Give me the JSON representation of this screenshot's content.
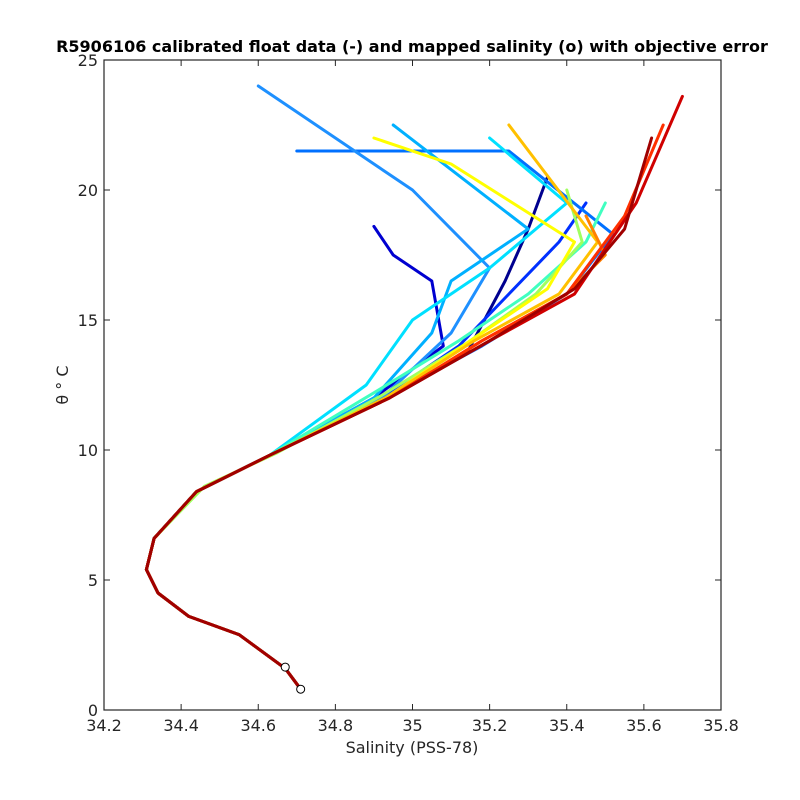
{
  "chart_data": {
    "type": "line",
    "title": "R5906106 calibrated float data (-) and mapped salinity (o) with objective error",
    "xlabel": "Salinity (PSS-78)",
    "ylabel": "θ ° C",
    "xlim": [
      34.2,
      35.8
    ],
    "ylim": [
      0,
      25
    ],
    "xticks": [
      "34.2",
      "34.4",
      "34.6",
      "34.8",
      "35",
      "35.2",
      "35.4",
      "35.6",
      "35.8"
    ],
    "yticks": [
      "0",
      "5",
      "10",
      "15",
      "20",
      "25"
    ],
    "grid": false,
    "colormap": "jet (early profiles blue → late profiles red)",
    "series": [
      {
        "color": "#00008f",
        "x": [
          34.71,
          34.67,
          34.55,
          34.42,
          34.34,
          34.31,
          34.33,
          34.44,
          34.63,
          34.92,
          35.14,
          35.24,
          35.3,
          35.35
        ],
        "y": [
          0.8,
          1.6,
          2.9,
          3.6,
          4.5,
          5.4,
          6.6,
          8.4,
          9.8,
          12.0,
          13.7,
          16.5,
          18.5,
          20.5
        ]
      },
      {
        "color": "#0000d0",
        "x": [
          34.71,
          34.67,
          34.55,
          34.42,
          34.34,
          34.31,
          34.33,
          34.44,
          34.63,
          34.9,
          35.08,
          35.05,
          34.95,
          34.9
        ],
        "y": [
          0.8,
          1.6,
          2.9,
          3.6,
          4.5,
          5.4,
          6.6,
          8.4,
          9.8,
          12.0,
          14.0,
          16.5,
          17.5,
          18.6
        ]
      },
      {
        "color": "#0030ff",
        "x": [
          34.71,
          34.67,
          34.55,
          34.42,
          34.34,
          34.31,
          34.33,
          34.44,
          34.63,
          34.92,
          35.12,
          35.25,
          35.38,
          35.45
        ],
        "y": [
          0.8,
          1.6,
          2.9,
          3.6,
          4.5,
          5.4,
          6.6,
          8.4,
          9.8,
          12.0,
          14.0,
          16.0,
          18.0,
          19.5
        ]
      },
      {
        "color": "#0070ff",
        "x": [
          34.71,
          34.67,
          34.55,
          34.42,
          34.34,
          34.31,
          34.33,
          34.44,
          34.63,
          34.93,
          35.18,
          35.4,
          35.52,
          35.25,
          34.7
        ],
        "y": [
          0.8,
          1.6,
          2.9,
          3.6,
          4.5,
          5.4,
          6.6,
          8.4,
          9.8,
          12.0,
          14.0,
          16.0,
          18.3,
          21.5,
          21.5
        ]
      },
      {
        "color": "#1e90ff",
        "x": [
          34.71,
          34.67,
          34.55,
          34.42,
          34.34,
          34.31,
          34.33,
          34.44,
          34.63,
          34.92,
          35.1,
          35.2,
          35.0,
          34.6
        ],
        "y": [
          0.8,
          1.6,
          2.9,
          3.6,
          4.5,
          5.4,
          6.6,
          8.4,
          9.8,
          12.0,
          14.5,
          17.0,
          20.0,
          24.0
        ]
      },
      {
        "color": "#00b0ff",
        "x": [
          34.71,
          34.67,
          34.55,
          34.42,
          34.34,
          34.31,
          34.33,
          34.44,
          34.63,
          34.9,
          35.05,
          35.1,
          35.3,
          34.95
        ],
        "y": [
          0.8,
          1.6,
          2.9,
          3.6,
          4.5,
          5.4,
          6.6,
          8.4,
          9.8,
          12.0,
          14.5,
          16.5,
          18.5,
          22.5
        ]
      },
      {
        "color": "#00e0ff",
        "x": [
          34.71,
          34.67,
          34.55,
          34.42,
          34.34,
          34.31,
          34.33,
          34.44,
          34.63,
          34.88,
          35.0,
          35.2,
          35.4,
          35.2
        ],
        "y": [
          0.8,
          1.6,
          2.9,
          3.6,
          4.5,
          5.4,
          6.6,
          8.4,
          9.8,
          12.5,
          15.0,
          17.0,
          19.5,
          22.0
        ]
      },
      {
        "color": "#40ffc0",
        "x": [
          34.71,
          34.67,
          34.55,
          34.42,
          34.34,
          34.31,
          34.33,
          34.44,
          34.63,
          34.9,
          35.12,
          35.3,
          35.45,
          35.5
        ],
        "y": [
          0.8,
          1.6,
          2.9,
          3.6,
          4.5,
          5.4,
          6.6,
          8.4,
          9.8,
          12.2,
          14.2,
          16.0,
          18.0,
          19.5
        ]
      },
      {
        "color": "#a0ff60",
        "x": [
          34.71,
          34.67,
          34.55,
          34.42,
          34.34,
          34.31,
          34.33,
          34.46,
          34.65,
          34.92,
          35.14,
          35.32,
          35.44,
          35.4
        ],
        "y": [
          0.8,
          1.6,
          2.9,
          3.6,
          4.5,
          5.4,
          6.6,
          8.6,
          9.9,
          12.1,
          14.1,
          16.0,
          18.0,
          20.0
        ]
      },
      {
        "color": "#ffff00",
        "x": [
          34.71,
          34.67,
          34.55,
          34.42,
          34.34,
          34.31,
          34.33,
          34.44,
          34.63,
          34.93,
          35.15,
          35.35,
          35.42,
          35.1,
          34.9
        ],
        "y": [
          0.8,
          1.6,
          2.9,
          3.6,
          4.5,
          5.4,
          6.6,
          8.4,
          9.8,
          12.0,
          14.2,
          16.2,
          18.0,
          21.0,
          22.0
        ]
      },
      {
        "color": "#ffc000",
        "x": [
          34.71,
          34.67,
          34.55,
          34.42,
          34.34,
          34.31,
          34.33,
          34.44,
          34.63,
          34.93,
          35.16,
          35.38,
          35.48,
          35.25
        ],
        "y": [
          0.8,
          1.6,
          2.9,
          3.6,
          4.5,
          5.4,
          6.6,
          8.4,
          9.8,
          12.0,
          14.2,
          16.0,
          18.0,
          22.5
        ]
      },
      {
        "color": "#ff8000",
        "x": [
          34.71,
          34.67,
          34.55,
          34.42,
          34.34,
          34.31,
          34.33,
          34.44,
          34.63,
          34.94,
          35.18,
          35.4,
          35.5,
          35.45
        ],
        "y": [
          0.8,
          1.6,
          2.9,
          3.6,
          4.5,
          5.4,
          6.6,
          8.4,
          9.8,
          12.0,
          14.2,
          16.0,
          17.5,
          19.0
        ]
      },
      {
        "color": "#ff3000",
        "x": [
          34.71,
          34.67,
          34.55,
          34.42,
          34.34,
          34.31,
          34.33,
          34.44,
          34.63,
          34.94,
          35.18,
          35.4,
          35.55,
          35.65
        ],
        "y": [
          0.8,
          1.6,
          2.9,
          3.6,
          4.5,
          5.4,
          6.6,
          8.4,
          9.8,
          12.0,
          14.2,
          16.0,
          19.0,
          22.5
        ]
      },
      {
        "color": "#d00000",
        "x": [
          34.71,
          34.67,
          34.55,
          34.42,
          34.34,
          34.31,
          34.33,
          34.44,
          34.63,
          34.94,
          35.2,
          35.42,
          35.58,
          35.7
        ],
        "y": [
          0.8,
          1.6,
          2.9,
          3.6,
          4.5,
          5.4,
          6.6,
          8.4,
          9.8,
          12.0,
          14.2,
          16.0,
          19.5,
          23.6
        ]
      },
      {
        "color": "#a00000",
        "x": [
          34.71,
          34.67,
          34.55,
          34.42,
          34.34,
          34.31,
          34.33,
          34.44,
          34.63,
          34.94,
          35.2,
          35.42,
          35.55,
          35.62
        ],
        "y": [
          0.8,
          1.6,
          2.9,
          3.6,
          4.5,
          5.4,
          6.6,
          8.4,
          9.8,
          12.0,
          14.2,
          16.2,
          18.5,
          22.0
        ]
      }
    ],
    "mapped_points": [
      {
        "x": 34.71,
        "y": 0.8
      },
      {
        "x": 34.67,
        "y": 1.65
      }
    ]
  }
}
